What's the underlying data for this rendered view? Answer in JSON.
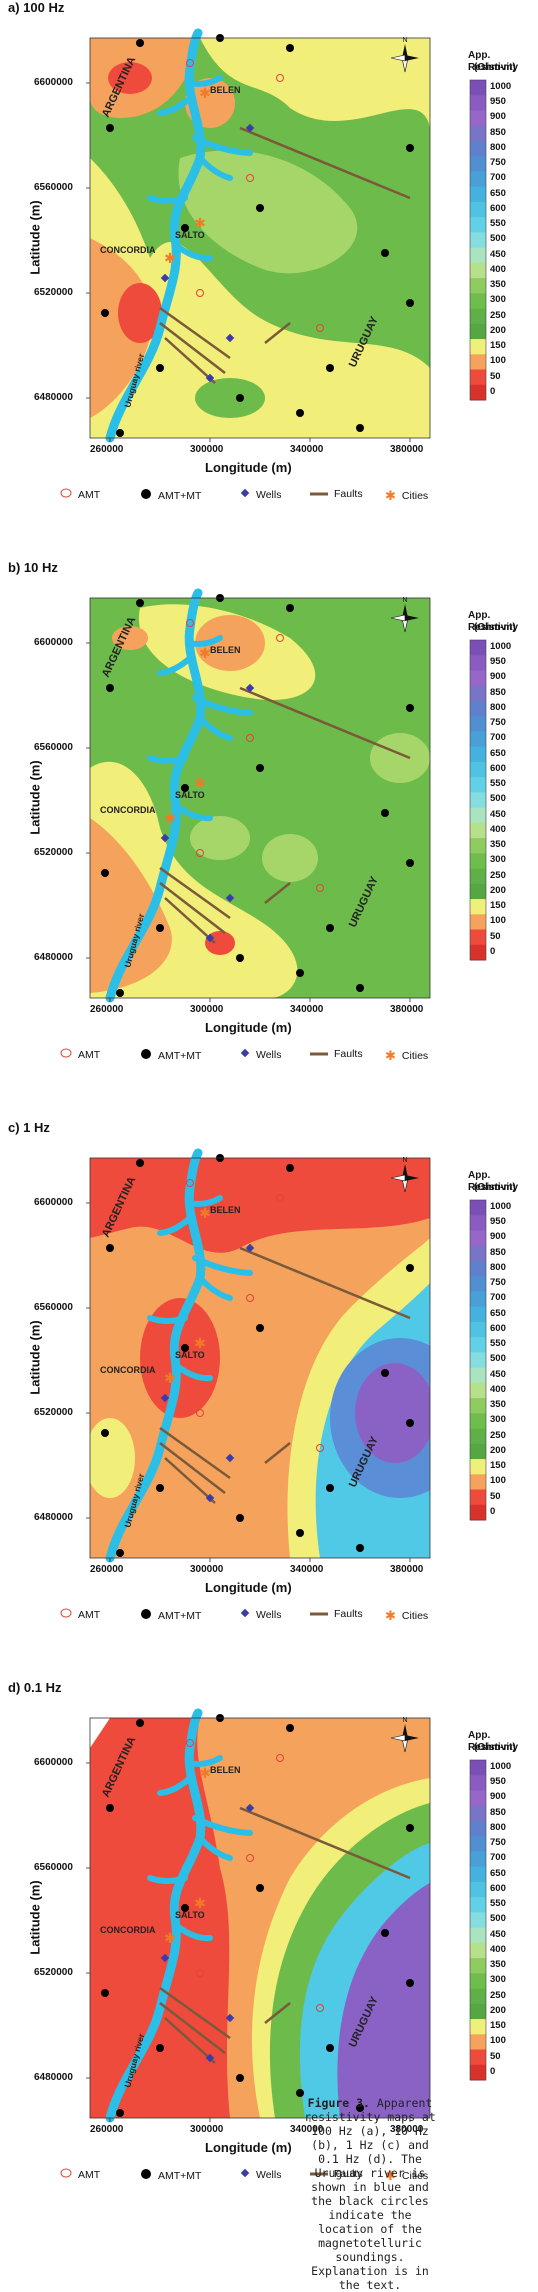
{
  "figure": {
    "panels": [
      {
        "id": "a",
        "title": "a) 100 Hz"
      },
      {
        "id": "b",
        "title": "b) 10 Hz"
      },
      {
        "id": "c",
        "title": "c) 1 Hz"
      },
      {
        "id": "d",
        "title": "d) 0.1 Hz"
      }
    ],
    "y_axis_label": "Latitude (m)",
    "x_axis_label": "Longitude (m)",
    "y_ticks_ab": [
      "6600000",
      "6560000",
      "6520000",
      "6480000"
    ],
    "y_ticks_c": [
      "6600000",
      "6560000",
      "6520000",
      "6480000"
    ],
    "y_ticks_d": [
      "6600000",
      "6560000",
      "6520000",
      "6480000"
    ],
    "x_ticks_ab": [
      "260000",
      "300000",
      "340000",
      "380000"
    ],
    "x_ticks_c": [
      "260000",
      "300000",
      "340000",
      "380000"
    ],
    "x_ticks_d": [
      "260000",
      "300000",
      "340000",
      "380000"
    ],
    "scale_title_1": "App. Resistivity",
    "scale_title_2": "(Ohm-m)",
    "scale_values": [
      "1000",
      "950",
      "900",
      "850",
      "800",
      "750",
      "700",
      "650",
      "600",
      "550",
      "500",
      "450",
      "400",
      "350",
      "300",
      "250",
      "200",
      "150",
      "100",
      "50",
      "0"
    ],
    "place_labels": {
      "argentina": "ARGENTINA",
      "uruguay": "URUGUAY",
      "belen": "BELEN",
      "concordia": "CONCORDIA",
      "salto": "SALTO",
      "river": "Uruguay river"
    },
    "legend": {
      "amt": "AMT",
      "amt_mt": "AMT+MT",
      "wells": "Wells",
      "faults": "Faults",
      "cities": "Cities"
    },
    "colors": {
      "river": "#2bbfe8",
      "red": "#ef4b3c",
      "orange": "#f5a35c",
      "yellow": "#f2ee7a",
      "lightgreen": "#a6d66a",
      "green": "#6dbb4a",
      "cyan": "#4fc9e6",
      "blue": "#5a8ed6",
      "purple": "#8a62c6"
    }
  },
  "caption": {
    "lead": "Figure 3.",
    "text": "Apparent resistivity maps at 100 Hz (a), 10 Hz (b), 1 Hz (c) and 0.1 Hz (d). The Uruguay river is shown in blue and the black circles indicate the location of the magnetotelluric soundings. Explanation is in the text."
  }
}
